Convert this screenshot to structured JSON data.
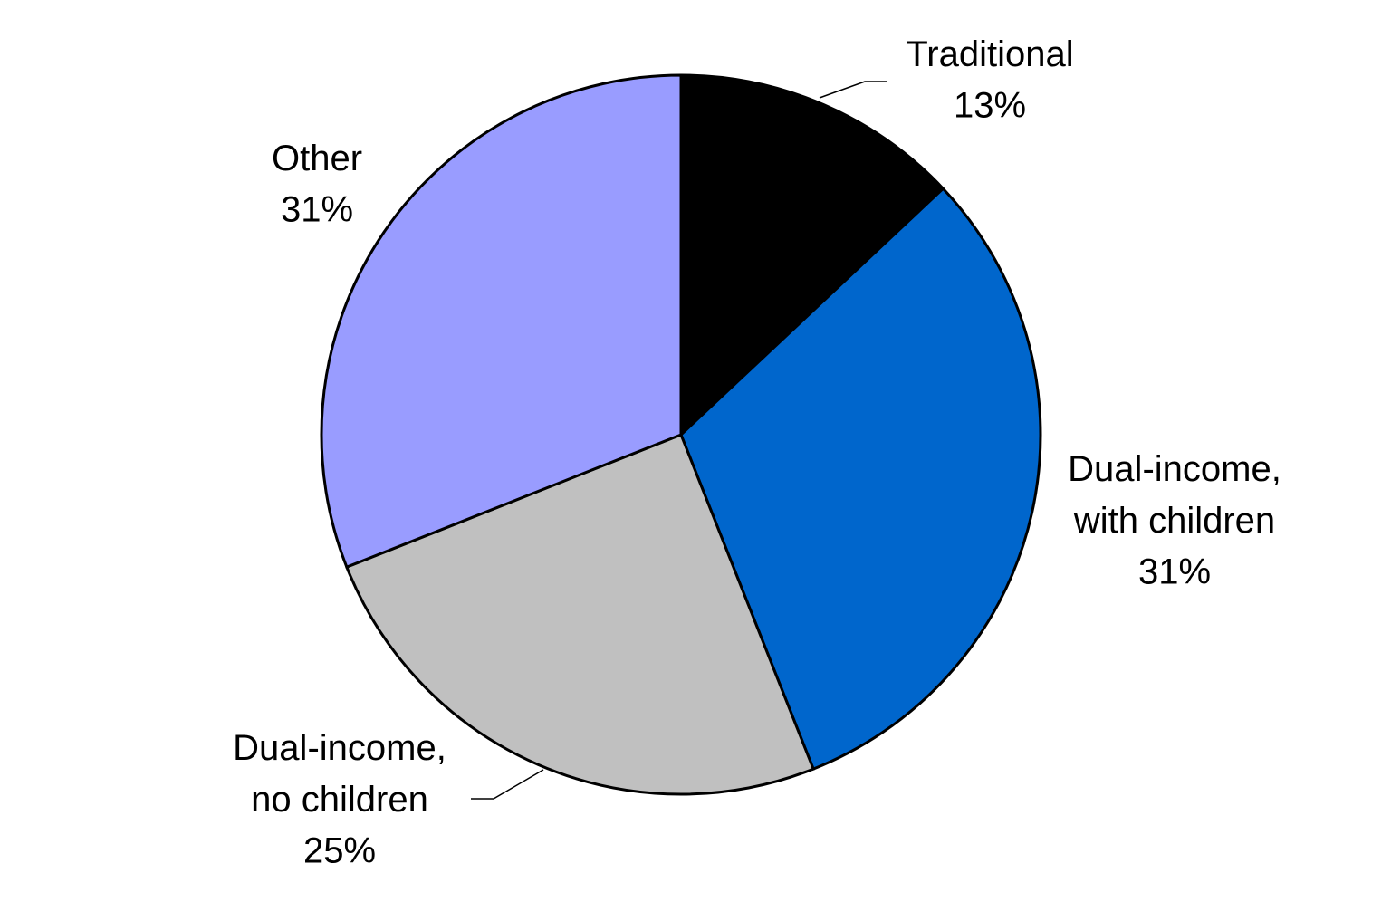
{
  "chart_data": {
    "type": "pie",
    "categories": [
      "Traditional",
      "Dual-income, with children",
      "Dual-income, no children",
      "Other"
    ],
    "values": [
      13,
      31,
      25,
      31
    ],
    "value_labels": [
      "13%",
      "31%",
      "25%",
      "31%"
    ],
    "colors": [
      "#000000",
      "#0066cc",
      "#c0c0c0",
      "#999cff"
    ]
  }
}
